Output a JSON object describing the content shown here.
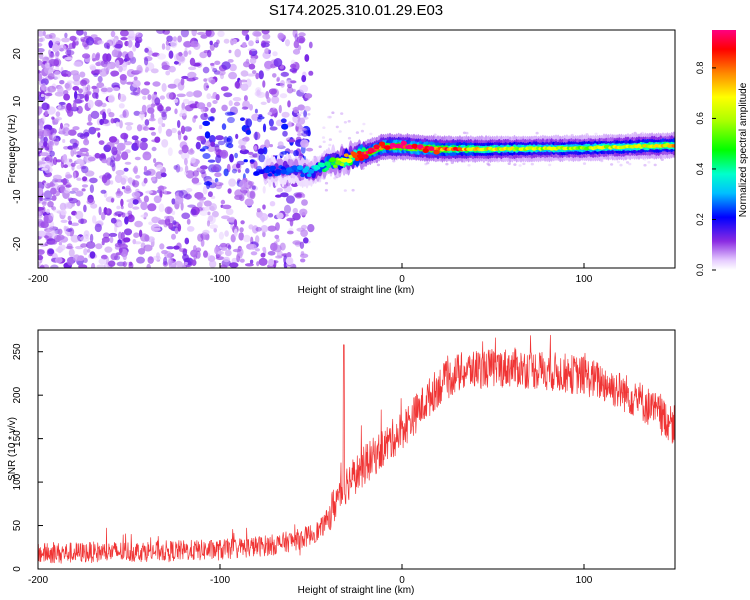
{
  "title": "S174.2025.310.01.29.E03",
  "colors": {
    "snr_line": "#f03434",
    "axis": "#000000"
  },
  "chart_data": [
    {
      "type": "heatmap",
      "name": "spectrogram",
      "title": "",
      "xlabel": "Height of straight line (km)",
      "ylabel": "Frequency (Hz)",
      "xlim": [
        -200,
        150
      ],
      "ylim": [
        -25,
        25
      ],
      "x_ticks": [
        -200,
        -100,
        0,
        100
      ],
      "x_tick_labels": [
        "-200",
        "-100",
        "0",
        "100"
      ],
      "y_ticks": [
        -20,
        -10,
        0,
        10,
        20
      ],
      "y_tick_labels": [
        "-20",
        "-10",
        "0",
        "10",
        "20"
      ],
      "colorbar": {
        "label": "Normalized spectral amplitude",
        "range": [
          0,
          0.95
        ],
        "ticks": [
          0,
          0.2,
          0.4,
          0.6,
          0.8
        ],
        "tick_labels": [
          "0.0",
          "0.2",
          "0.4",
          "0.6",
          "0.8"
        ],
        "colormap": "rainbow"
      },
      "ridge": {
        "description_points_x": [
          -80,
          -60,
          -50,
          -40,
          -30,
          -20,
          -10,
          0,
          20,
          50,
          100,
          150
        ],
        "frequency": [
          -5,
          -4,
          -5,
          -3,
          -2,
          -1,
          0.5,
          0.5,
          0,
          0,
          0.2,
          0.8
        ],
        "amplitude": [
          0.2,
          0.25,
          0.3,
          0.45,
          0.7,
          0.85,
          0.9,
          0.9,
          0.85,
          0.65,
          0.6,
          0.7
        ]
      }
    },
    {
      "type": "line",
      "name": "snr",
      "title": "",
      "xlabel": "Height of straight line (km)",
      "ylabel": "SNR (10 * v/v)",
      "xlim": [
        -200,
        150
      ],
      "ylim": [
        0,
        275
      ],
      "x_ticks": [
        -200,
        -100,
        0,
        100
      ],
      "x_tick_labels": [
        "-200",
        "-100",
        "0",
        "100"
      ],
      "y_ticks": [
        0,
        50,
        100,
        150,
        200,
        250
      ],
      "y_tick_labels": [
        "0",
        "50",
        "100",
        "150",
        "200",
        "250"
      ],
      "envelope_x": [
        -200,
        -150,
        -100,
        -70,
        -55,
        -45,
        -40,
        -36,
        -30,
        -20,
        -10,
        0,
        10,
        20,
        30,
        40,
        60,
        80,
        100,
        110,
        120,
        130,
        140,
        150
      ],
      "envelope_mean": [
        18,
        20,
        22,
        28,
        35,
        45,
        60,
        80,
        100,
        120,
        140,
        160,
        185,
        210,
        225,
        230,
        232,
        228,
        222,
        215,
        205,
        195,
        180,
        165
      ],
      "noise_amplitude": 12,
      "spike": {
        "x": -32,
        "y": 258
      }
    }
  ]
}
